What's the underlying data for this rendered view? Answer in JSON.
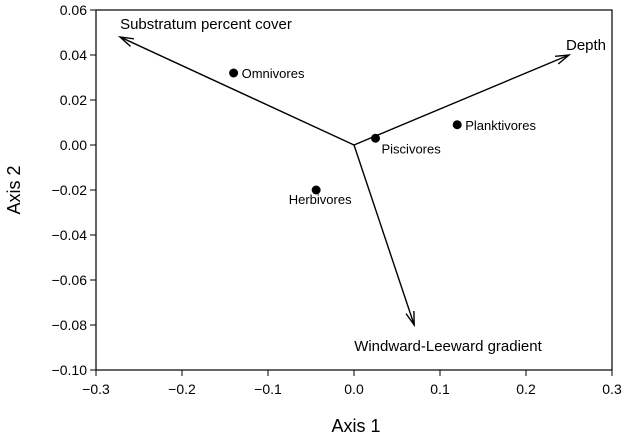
{
  "chart_data": {
    "type": "scatter",
    "xlabel": "Axis 1",
    "ylabel": "Axis 2",
    "xlim": [
      -0.3,
      0.3
    ],
    "ylim": [
      -0.1,
      0.06
    ],
    "xticks": [
      -0.3,
      -0.2,
      -0.1,
      0.0,
      0.1,
      0.2,
      0.3
    ],
    "xtick_labels": [
      "−0.3",
      "−0.2",
      "−0.1",
      "0.0",
      "0.1",
      "0.2",
      "0.3"
    ],
    "yticks": [
      0.06,
      0.04,
      0.02,
      0.0,
      -0.02,
      -0.04,
      -0.06,
      -0.08,
      -0.1
    ],
    "ytick_labels": [
      "0.06",
      "0.04",
      "0.02",
      "0.00",
      "−0.02",
      "−0.04",
      "−0.06",
      "−0.08",
      "−0.10"
    ],
    "grid": false,
    "points": [
      {
        "label": "Omnivores",
        "x": -0.14,
        "y": 0.032
      },
      {
        "label": "Piscivores",
        "x": 0.025,
        "y": 0.003
      },
      {
        "label": "Planktivores",
        "x": 0.12,
        "y": 0.009
      },
      {
        "label": "Herbivores",
        "x": -0.044,
        "y": -0.02
      }
    ],
    "vectors": [
      {
        "label": "Substratum percent cover",
        "x0": 0.0,
        "y0": 0.0,
        "x1": -0.272,
        "y1": 0.048
      },
      {
        "label": "Depth",
        "x0": 0.0,
        "y0": 0.0,
        "x1": 0.25,
        "y1": 0.04
      },
      {
        "label": "Windward-Leeward gradient",
        "x0": 0.0,
        "y0": 0.0,
        "x1": 0.07,
        "y1": -0.08
      }
    ]
  }
}
